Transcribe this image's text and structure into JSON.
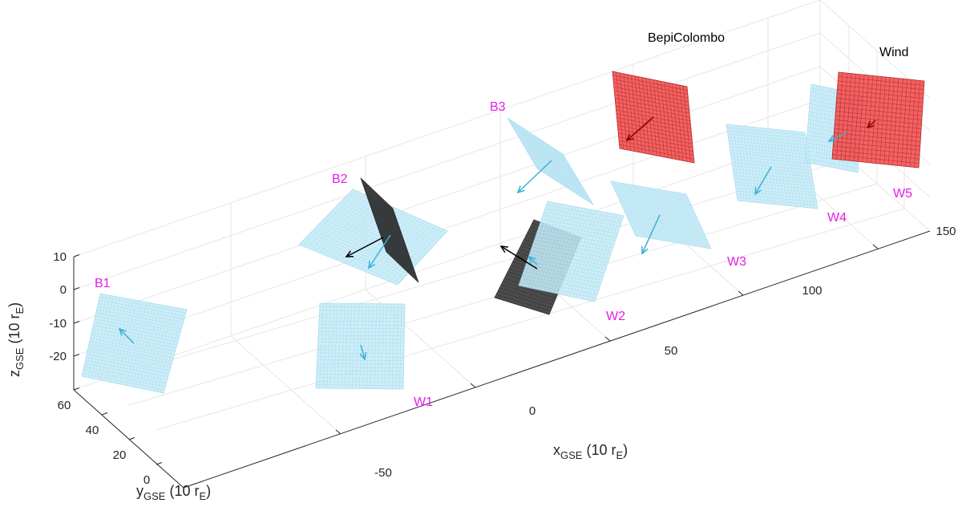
{
  "chart_data": {
    "type": "3d-surface-planes",
    "title": "",
    "axes": {
      "x": {
        "label_main": "x",
        "label_sub": "GSE",
        "label_unit_main": " (10 r",
        "label_unit_sub": "E",
        "label_close": ")",
        "ticks": [
          "-50",
          "0",
          "50",
          "100",
          "150"
        ]
      },
      "y": {
        "label_main": "y",
        "label_sub": "GSE",
        "label_unit_main": " (10 r",
        "label_unit_sub": "E",
        "label_close": ")",
        "ticks": [
          "60",
          "40",
          "20",
          "0"
        ]
      },
      "z": {
        "label_main": "z",
        "label_sub": "GSE",
        "label_unit_main": " (10 r",
        "label_unit_sub": "E",
        "label_close": ")",
        "ticks": [
          "10",
          "0",
          "-10",
          "-20"
        ]
      }
    },
    "grid": true,
    "spacecraft_labels": [
      "BepiColombo",
      "Wind"
    ],
    "planes": [
      {
        "label": "B1",
        "kind": "light-blue"
      },
      {
        "label": "B2",
        "kind": "light-blue"
      },
      {
        "label": "B3",
        "kind": "light-blue"
      },
      {
        "label": "W1",
        "kind": "light-blue"
      },
      {
        "label": "W2",
        "kind": "light-blue"
      },
      {
        "label": "W3",
        "kind": "light-blue"
      },
      {
        "label": "W4",
        "kind": "light-blue"
      },
      {
        "label": "W5",
        "kind": "light-blue"
      },
      {
        "label": "",
        "kind": "black"
      },
      {
        "label": "",
        "kind": "black"
      },
      {
        "label": "",
        "kind": "red"
      },
      {
        "label": "",
        "kind": "red"
      }
    ],
    "colors": {
      "light_blue_fill": "#c8ecf8",
      "light_blue_grid": "#9fd8ee",
      "light_blue_arrow": "#3bb0d6",
      "black_fill": "#3a3a3a",
      "black_grid": "#111111",
      "red_fill": "#f25555",
      "red_grid": "#b01818",
      "label_color": "#e81ce8",
      "axis_color": "#262626",
      "grid_color": "#e6e6e6"
    }
  }
}
